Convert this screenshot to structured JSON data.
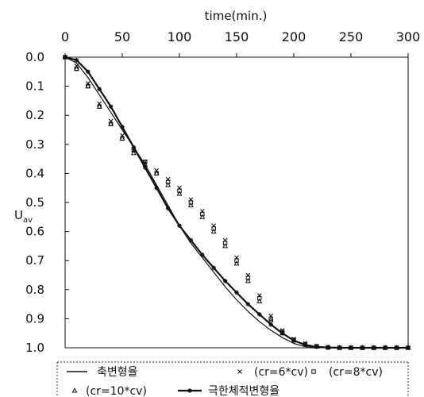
{
  "chart_data": {
    "type": "scatter",
    "title": "",
    "xlabel": "time(min.)",
    "ylabel": "U",
    "ylabel_subscript": "av",
    "x_axis_position": "top",
    "y_axis_inverted": true,
    "xlim": [
      0,
      300
    ],
    "ylim": [
      0.0,
      1.0
    ],
    "x_ticks": [
      0,
      50,
      100,
      150,
      200,
      250,
      300
    ],
    "y_ticks": [
      0.0,
      0.1,
      0.2,
      0.3,
      0.4,
      0.5,
      0.6,
      0.7,
      0.8,
      0.9,
      1.0
    ],
    "x_tick_labels": [
      "0",
      "50",
      "100",
      "150",
      "200",
      "250",
      "300"
    ],
    "y_tick_labels": [
      "0.0",
      "0.1",
      "0.2",
      "0.3",
      "0.4",
      "0.5",
      "0.6",
      "0.7",
      "0.8",
      "0.9",
      "1.0"
    ],
    "grid": "dotted",
    "legend_position": "bottom",
    "series": [
      {
        "name": "축변형율",
        "marker": "line",
        "x": [
          0,
          10,
          20,
          30,
          40,
          50,
          60,
          70,
          80,
          90,
          100,
          110,
          120,
          130,
          140,
          150,
          160,
          170,
          180,
          190,
          200,
          210,
          220,
          230,
          240,
          250,
          260,
          270,
          280,
          290,
          300
        ],
        "y": [
          0.0,
          0.02,
          0.07,
          0.13,
          0.19,
          0.25,
          0.31,
          0.37,
          0.44,
          0.51,
          0.58,
          0.64,
          0.69,
          0.74,
          0.79,
          0.835,
          0.875,
          0.91,
          0.94,
          0.965,
          0.985,
          0.996,
          0.999,
          1.0,
          1.0,
          1.0,
          1.0,
          1.0,
          1.0,
          1.0,
          1.0
        ]
      },
      {
        "name": "(cr=6*cv)",
        "marker": "x",
        "x": [
          0,
          10,
          20,
          30,
          40,
          50,
          60,
          70,
          80,
          90,
          100,
          110,
          120,
          130,
          140,
          150,
          160,
          170,
          180,
          190,
          200,
          210,
          220,
          230,
          240,
          250,
          260,
          270,
          280,
          290,
          300
        ],
        "y": [
          0.0,
          0.03,
          0.09,
          0.16,
          0.22,
          0.27,
          0.32,
          0.36,
          0.39,
          0.42,
          0.45,
          0.49,
          0.53,
          0.58,
          0.63,
          0.69,
          0.75,
          0.82,
          0.89,
          0.94,
          0.97,
          0.985,
          0.994,
          0.998,
          1.0,
          1.0,
          1.0,
          1.0,
          1.0,
          1.0,
          1.0
        ]
      },
      {
        "name": "(cr=8*cv)",
        "marker": "square",
        "x": [
          0,
          10,
          20,
          30,
          40,
          50,
          60,
          70,
          80,
          90,
          100,
          110,
          120,
          130,
          140,
          150,
          160,
          170,
          180,
          190,
          200,
          210,
          220,
          230,
          240,
          250,
          260,
          270,
          280,
          290,
          300
        ],
        "y": [
          0.0,
          0.04,
          0.1,
          0.17,
          0.23,
          0.28,
          0.32,
          0.36,
          0.4,
          0.43,
          0.46,
          0.5,
          0.54,
          0.59,
          0.64,
          0.7,
          0.76,
          0.83,
          0.9,
          0.945,
          0.972,
          0.987,
          0.995,
          0.999,
          1.0,
          1.0,
          1.0,
          1.0,
          1.0,
          1.0,
          1.0
        ]
      },
      {
        "name": "(cr=10*cv)",
        "marker": "triangle",
        "x": [
          0,
          10,
          20,
          30,
          40,
          50,
          60,
          70,
          80,
          90,
          100,
          110,
          120,
          130,
          140,
          150,
          160,
          170,
          180,
          190,
          200,
          210,
          220,
          230,
          240,
          250,
          260,
          270,
          280,
          290,
          300
        ],
        "y": [
          0.0,
          0.04,
          0.1,
          0.17,
          0.23,
          0.28,
          0.33,
          0.37,
          0.4,
          0.44,
          0.47,
          0.51,
          0.55,
          0.6,
          0.65,
          0.71,
          0.77,
          0.84,
          0.905,
          0.95,
          0.975,
          0.989,
          0.996,
          0.999,
          1.0,
          1.0,
          1.0,
          1.0,
          1.0,
          1.0,
          1.0
        ]
      },
      {
        "name": "극한체적변형율",
        "marker": "line-star",
        "x": [
          0,
          10,
          20,
          30,
          40,
          50,
          60,
          70,
          80,
          90,
          100,
          110,
          120,
          130,
          140,
          150,
          160,
          170,
          180,
          190,
          200,
          210,
          220,
          230,
          240,
          250,
          260,
          270,
          280,
          290,
          300
        ],
        "y": [
          0.0,
          0.01,
          0.05,
          0.11,
          0.17,
          0.24,
          0.31,
          0.38,
          0.45,
          0.52,
          0.58,
          0.63,
          0.68,
          0.725,
          0.77,
          0.81,
          0.85,
          0.885,
          0.92,
          0.95,
          0.975,
          0.99,
          0.997,
          0.999,
          1.0,
          1.0,
          1.0,
          1.0,
          1.0,
          1.0,
          1.0
        ]
      }
    ]
  }
}
